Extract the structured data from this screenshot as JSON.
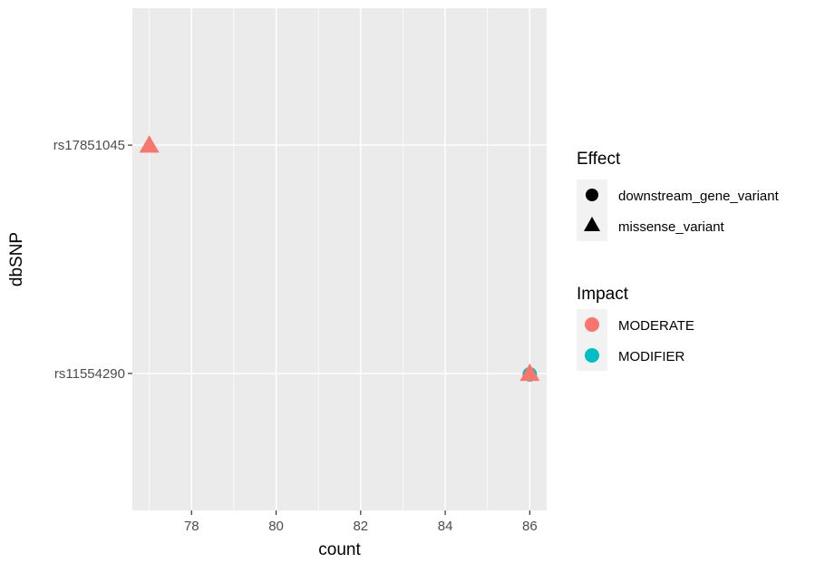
{
  "chart_data": {
    "type": "scatter",
    "xlabel": "count",
    "ylabel": "dbSNP",
    "xlim": [
      76.6,
      86.4
    ],
    "x_ticks": [
      78,
      80,
      82,
      84,
      86
    ],
    "categories": [
      "rs11554290",
      "rs17851045"
    ],
    "grid": true,
    "points": [
      {
        "x": 86,
        "y": "rs11554290",
        "effect": "downstream_gene_variant",
        "impact": "MODIFIER"
      },
      {
        "x": 86,
        "y": "rs11554290",
        "effect": "missense_variant",
        "impact": "MODERATE"
      },
      {
        "x": 77,
        "y": "rs17851045",
        "effect": "missense_variant",
        "impact": "MODERATE"
      }
    ],
    "legends": {
      "effect": {
        "title": "Effect",
        "entries": [
          {
            "label": "downstream_gene_variant",
            "shape": "circle"
          },
          {
            "label": "missense_variant",
            "shape": "triangle"
          }
        ]
      },
      "impact": {
        "title": "Impact",
        "entries": [
          {
            "label": "MODERATE",
            "color": "#F8766D"
          },
          {
            "label": "MODIFIER",
            "color": "#00BFC4"
          }
        ]
      }
    },
    "legend_position": "right",
    "colors": {
      "panel": "#EBEBEB",
      "grid": "#FFFFFF",
      "MODERATE": "#F8766D",
      "MODIFIER": "#00BFC4"
    }
  }
}
